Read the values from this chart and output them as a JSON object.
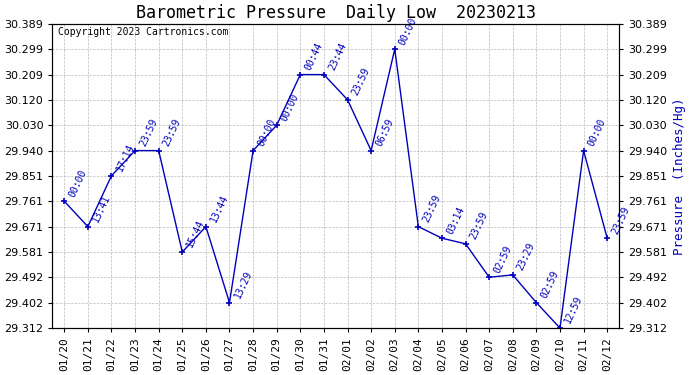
{
  "title": "Barometric Pressure  Daily Low  20230213",
  "ylabel": "Pressure  (Inches/Hg)",
  "copyright": "Copyright 2023 Cartronics.com",
  "dates": [
    "01/20",
    "01/21",
    "01/22",
    "01/23",
    "01/24",
    "01/25",
    "01/26",
    "01/27",
    "01/28",
    "01/29",
    "01/30",
    "01/31",
    "02/01",
    "02/02",
    "02/03",
    "02/04",
    "02/05",
    "02/06",
    "02/07",
    "02/08",
    "02/09",
    "02/10",
    "02/11",
    "02/12"
  ],
  "values": [
    29.761,
    29.671,
    29.851,
    29.94,
    29.94,
    29.581,
    29.671,
    29.402,
    29.94,
    30.03,
    30.209,
    30.209,
    30.12,
    29.94,
    30.299,
    29.671,
    29.63,
    29.61,
    29.492,
    29.5,
    29.402,
    29.312,
    29.94,
    29.63
  ],
  "point_labels": [
    "00:00",
    "13:41",
    "17:14",
    "23:59",
    "23:59",
    "15:44",
    "13:44",
    "13:29",
    "00:00",
    "00:00",
    "00:44",
    "23:44",
    "23:59",
    "06:59",
    "00:00",
    "23:59",
    "03:14",
    "23:59",
    "02:59",
    "23:29",
    "02:59",
    "12:59",
    "00:00",
    "23:59"
  ],
  "ylim_min": 29.312,
  "ylim_max": 30.389,
  "yticks": [
    29.312,
    29.402,
    29.492,
    29.581,
    29.671,
    29.761,
    29.851,
    29.94,
    30.03,
    30.12,
    30.209,
    30.299,
    30.389
  ],
  "line_color": "#0000bb",
  "marker_color": "#0000bb",
  "label_color": "#0000bb",
  "title_color": "#000000",
  "copyright_color": "#000000",
  "ylabel_color": "#0000bb",
  "bg_color": "#ffffff",
  "grid_color": "#aaaaaa",
  "title_fontsize": 12,
  "label_fontsize": 7,
  "axis_fontsize": 8,
  "ylabel_fontsize": 9
}
